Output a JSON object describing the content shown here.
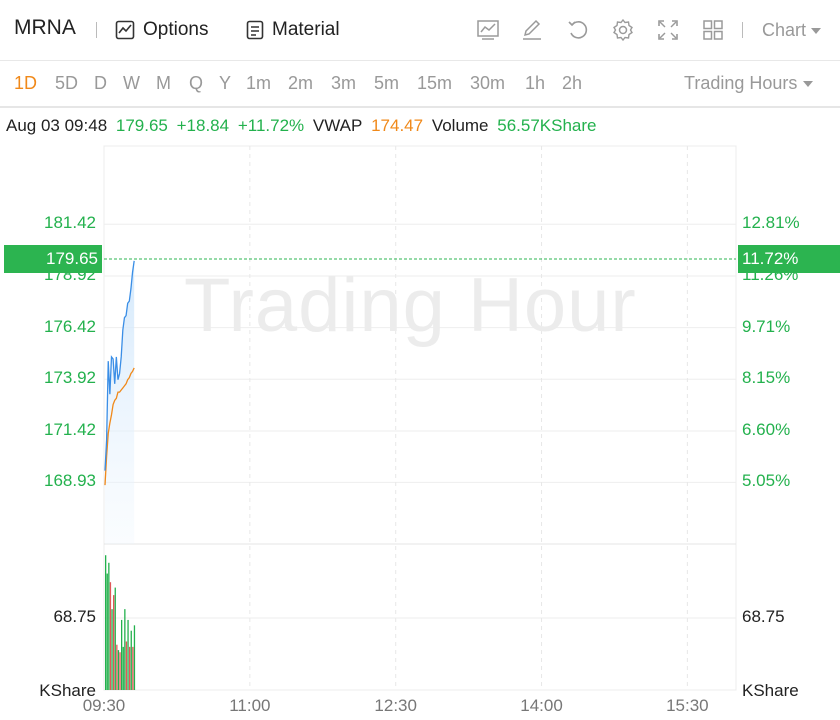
{
  "header": {
    "symbol": "MRNA",
    "options_label": "Options",
    "material_label": "Material",
    "chart_label": "Chart",
    "icons": [
      "line-chart-icon",
      "draw-icon",
      "reset-icon",
      "gear-icon",
      "fullscreen-icon",
      "layout-grid-icon"
    ]
  },
  "periods": {
    "items": [
      "1D",
      "5D",
      "D",
      "W",
      "M",
      "Q",
      "Y",
      "1m",
      "2m",
      "3m",
      "5m",
      "15m",
      "30m",
      "1h",
      "2h"
    ],
    "active": "1D",
    "hours_label": "Trading Hours"
  },
  "info": {
    "datetime": "Aug 03 09:48",
    "price": "179.65",
    "change": "+18.84",
    "change_pct": "+11.72%",
    "vwap_label": "VWAP",
    "vwap_value": "174.47",
    "volume_label": "Volume",
    "volume_value": "56.57KShare"
  },
  "watermark": "Trading Hour",
  "colors": {
    "up": "#23b14d",
    "down": "#e05858",
    "price_line": "#3a8ee6",
    "vwap_line": "#f0891a"
  },
  "chart_data": {
    "type": "line",
    "price_axis": {
      "left_ticks": [
        "181.42",
        "178.92",
        "176.42",
        "173.92",
        "171.42",
        "168.93"
      ],
      "right_ticks": [
        "12.81%",
        "11.26%",
        "9.71%",
        "8.15%",
        "6.60%",
        "5.05%"
      ],
      "current_price": "179.65",
      "current_pct": "11.72%"
    },
    "volume_axis": {
      "tick": "68.75",
      "unit": "KShare"
    },
    "x_ticks": [
      "09:30",
      "11:00",
      "12:30",
      "14:00",
      "15:30"
    ],
    "price_range": [
      165.95,
      184.24
    ],
    "series": [
      {
        "name": "Price",
        "x_minutes": [
          0,
          1,
          2,
          3,
          4,
          5,
          6,
          7,
          8,
          9,
          10,
          11,
          12,
          13,
          14,
          15,
          16,
          17,
          18
        ],
        "values": [
          169.5,
          171.0,
          174.8,
          173.2,
          175.0,
          174.9,
          173.7,
          175.0,
          173.9,
          174.2,
          175.0,
          176.3,
          176.9,
          177.0,
          177.6,
          177.7,
          178.3,
          179.1,
          179.65
        ]
      },
      {
        "name": "VWAP",
        "x_minutes": [
          0,
          1,
          2,
          3,
          4,
          5,
          6,
          7,
          8,
          9,
          10,
          11,
          12,
          13,
          14,
          15,
          16,
          17,
          18
        ],
        "values": [
          168.8,
          170.2,
          171.3,
          171.8,
          172.2,
          172.7,
          172.9,
          173.0,
          173.3,
          173.3,
          173.4,
          173.5,
          173.6,
          173.7,
          173.9,
          174.0,
          174.2,
          174.3,
          174.47
        ]
      }
    ],
    "volume": {
      "max": 128,
      "values": [
        125,
        108,
        118,
        100,
        75,
        88,
        95,
        42,
        37,
        35,
        65,
        40,
        75,
        45,
        65,
        40,
        55,
        40,
        60
      ],
      "up": [
        true,
        true,
        true,
        false,
        true,
        false,
        true,
        false,
        true,
        false,
        true,
        true,
        true,
        false,
        true,
        false,
        true,
        false,
        true
      ]
    }
  }
}
